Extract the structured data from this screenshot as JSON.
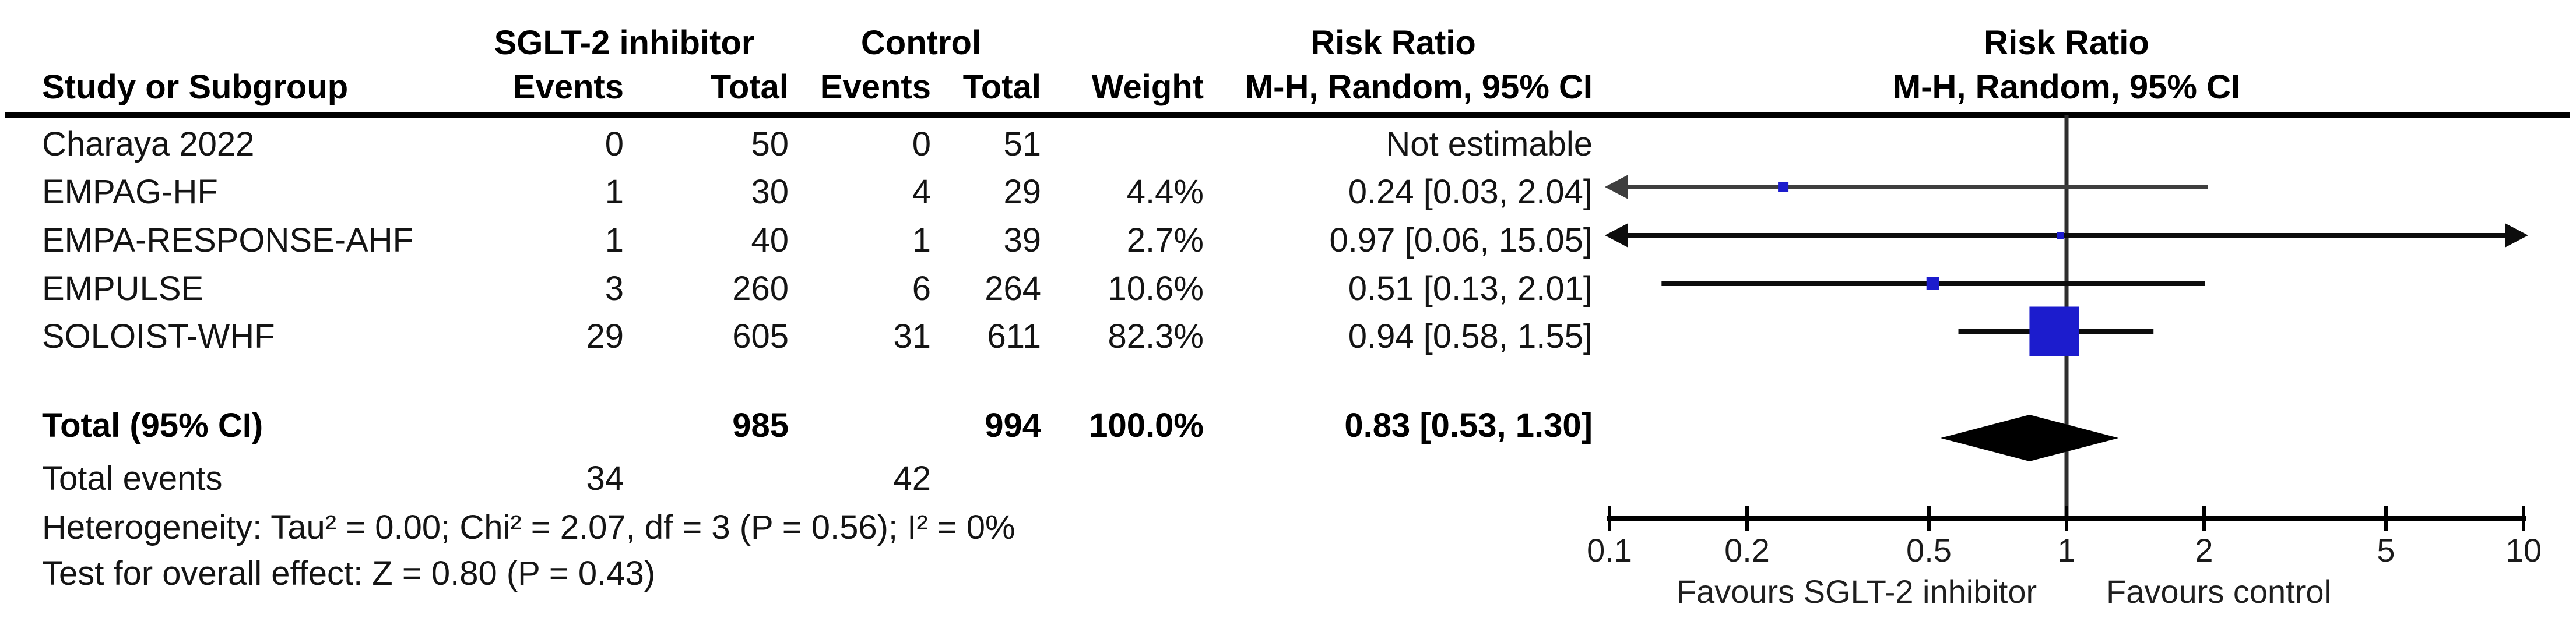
{
  "header": {
    "group1": "SGLT-2 inhibitor",
    "group2": "Control",
    "study_col": "Study or Subgroup",
    "events": "Events",
    "total": "Total",
    "weight": "Weight",
    "effect_col_title": "Risk Ratio",
    "effect_col_sub": "M-H, Random, 95% CI",
    "plot_title": "Risk Ratio",
    "plot_sub": "M-H, Random, 95% CI"
  },
  "footer": {
    "total_events_label": "Total events",
    "treat_events_total": 34,
    "ctrl_events_total": 42,
    "heterogeneity": "Heterogeneity: Tau² = 0.00; Chi² = 2.07, df = 3 (P = 0.56); I² = 0%",
    "overall_effect": "Test for overall effect: Z = 0.80 (P = 0.43)"
  },
  "chart_data": {
    "type": "forest",
    "effect_measure": "Risk Ratio",
    "method": "M-H, Random, 95% CI",
    "scale": "log",
    "studies": [
      {
        "name": "Charaya 2022",
        "events_treat": 0,
        "total_treat": 50,
        "events_ctrl": 0,
        "total_ctrl": 51,
        "weight": "",
        "rr": null,
        "ci_low": null,
        "ci_high": null,
        "ci_text": "Not estimable",
        "marker_px": 0,
        "line_color": "#0d0d0d"
      },
      {
        "name": "EMPAG-HF",
        "events_treat": 1,
        "total_treat": 30,
        "events_ctrl": 4,
        "total_ctrl": 29,
        "weight": "4.4%",
        "rr": 0.24,
        "ci_low": 0.03,
        "ci_high": 2.04,
        "ci_text": "0.24 [0.03, 2.04]",
        "marker_px": 18,
        "line_color": "#3e3e3e"
      },
      {
        "name": "EMPA-RESPONSE-AHF",
        "events_treat": 1,
        "total_treat": 40,
        "events_ctrl": 1,
        "total_ctrl": 39,
        "weight": "2.7%",
        "rr": 0.97,
        "ci_low": 0.06,
        "ci_high": 15.05,
        "ci_text": "0.97 [0.06, 15.05]",
        "marker_px": 12,
        "line_color": "#0d0d0d"
      },
      {
        "name": "EMPULSE",
        "events_treat": 3,
        "total_treat": 260,
        "events_ctrl": 6,
        "total_ctrl": 264,
        "weight": "10.6%",
        "rr": 0.51,
        "ci_low": 0.13,
        "ci_high": 2.01,
        "ci_text": "0.51 [0.13, 2.01]",
        "marker_px": 22,
        "line_color": "#0d0d0d"
      },
      {
        "name": "SOLOIST-WHF",
        "events_treat": 29,
        "total_treat": 605,
        "events_ctrl": 31,
        "total_ctrl": 611,
        "weight": "82.3%",
        "rr": 0.94,
        "ci_low": 0.58,
        "ci_high": 1.55,
        "ci_text": "0.94 [0.58, 1.55]",
        "marker_px": 85,
        "line_color": "#0d0d0d"
      }
    ],
    "total": {
      "label": "Total (95% CI)",
      "total_treat": 985,
      "total_ctrl": 994,
      "weight": "100.0%",
      "rr": 0.83,
      "ci_low": 0.53,
      "ci_high": 1.3,
      "ci_text": "0.83 [0.53, 1.30]"
    },
    "axis": {
      "min": 0.1,
      "max": 10,
      "ticks": [
        {
          "v": 0.1,
          "label": "0.1"
        },
        {
          "v": 0.2,
          "label": "0.2"
        },
        {
          "v": 0.5,
          "label": "0.5"
        },
        {
          "v": 1,
          "label": "1"
        },
        {
          "v": 2,
          "label": "2"
        },
        {
          "v": 5,
          "label": "5"
        },
        {
          "v": 10,
          "label": "10"
        }
      ]
    },
    "favours_left": "Favours SGLT-2 inhibitor",
    "favours_right": "Favours control",
    "colors": {
      "marker": "#1c1ccd",
      "diamond": "#000000",
      "null_line": "#2e2e2e",
      "axis": "#000000"
    }
  }
}
